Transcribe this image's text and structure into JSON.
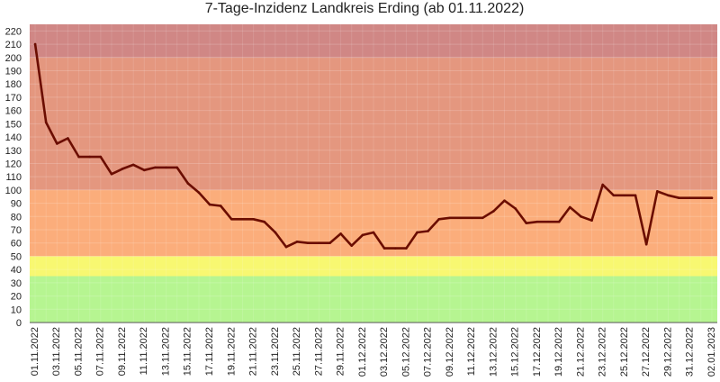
{
  "chart_data": {
    "type": "line",
    "title": "7-Tage-Inzidenz Landkreis Erding (ab 01.11.2022)",
    "xlabel": "",
    "ylabel": "",
    "ylim": [
      0,
      225
    ],
    "yticks": [
      0,
      10,
      20,
      30,
      40,
      50,
      60,
      70,
      80,
      90,
      100,
      110,
      120,
      130,
      140,
      150,
      160,
      170,
      180,
      190,
      200,
      210,
      220
    ],
    "x": [
      "01.11.2022",
      "02.11.2022",
      "03.11.2022",
      "04.11.2022",
      "05.11.2022",
      "06.11.2022",
      "07.11.2022",
      "08.11.2022",
      "09.11.2022",
      "10.11.2022",
      "11.11.2022",
      "12.11.2022",
      "13.11.2022",
      "14.11.2022",
      "15.11.2022",
      "16.11.2022",
      "17.11.2022",
      "18.11.2022",
      "19.11.2022",
      "20.11.2022",
      "21.11.2022",
      "22.11.2022",
      "23.11.2022",
      "24.11.2022",
      "25.11.2022",
      "26.11.2022",
      "27.11.2022",
      "28.11.2022",
      "29.11.2022",
      "30.11.2022",
      "01.12.2022",
      "02.12.2022",
      "03.12.2022",
      "04.12.2022",
      "05.12.2022",
      "06.12.2022",
      "07.12.2022",
      "08.12.2022",
      "09.12.2022",
      "10.12.2022",
      "11.12.2022",
      "12.12.2022",
      "13.12.2022",
      "14.12.2022",
      "15.12.2022",
      "16.12.2022",
      "17.12.2022",
      "18.12.2022",
      "19.12.2022",
      "20.12.2022",
      "21.12.2022",
      "22.12.2022",
      "23.12.2022",
      "24.12.2022",
      "25.12.2022",
      "26.12.2022",
      "27.12.2022",
      "28.12.2022",
      "29.12.2022",
      "30.12.2022",
      "31.12.2022",
      "01.01.2023",
      "02.01.2023"
    ],
    "x_tick_labels": [
      "01.11.2022",
      "03.11.2022",
      "05.11.2022",
      "07.11.2022",
      "09.11.2022",
      "11.11.2022",
      "13.11.2022",
      "15.11.2022",
      "17.11.2022",
      "19.11.2022",
      "21.11.2022",
      "23.11.2022",
      "25.11.2022",
      "27.11.2022",
      "29.11.2022",
      "01.12.2022",
      "03.12.2022",
      "05.12.2022",
      "07.12.2022",
      "09.12.2022",
      "11.12.2022",
      "13.12.2022",
      "15.12.2022",
      "17.12.2022",
      "19.12.2022",
      "21.12.2022",
      "23.12.2022",
      "25.12.2022",
      "27.12.2022",
      "29.12.2022",
      "31.12.2022",
      "02.01.2023"
    ],
    "series": [
      {
        "color": "#6b0d00",
        "values": [
          210,
          151,
          135,
          139,
          125,
          125,
          125,
          112,
          116,
          119,
          115,
          117,
          117,
          117,
          105,
          98,
          89,
          88,
          78,
          78,
          78,
          76,
          68,
          57,
          61,
          60,
          60,
          60,
          67,
          58,
          66,
          68,
          56,
          56,
          56,
          68,
          69,
          78,
          79,
          79,
          79,
          79,
          84,
          92,
          86,
          75,
          76,
          76,
          76,
          87,
          80,
          77,
          104,
          96,
          96,
          96,
          59,
          99,
          96,
          94,
          94,
          94,
          94
        ]
      }
    ],
    "bands": [
      {
        "from": 0,
        "to": 35,
        "color": "#b6f591"
      },
      {
        "from": 35,
        "to": 50,
        "color": "#f8f871"
      },
      {
        "from": 50,
        "to": 100,
        "color": "#fbad7b"
      },
      {
        "from": 100,
        "to": 200,
        "color": "#e4977f"
      },
      {
        "from": 200,
        "to": 225,
        "color": "#d08785"
      }
    ],
    "grid": true,
    "legend": "none"
  }
}
